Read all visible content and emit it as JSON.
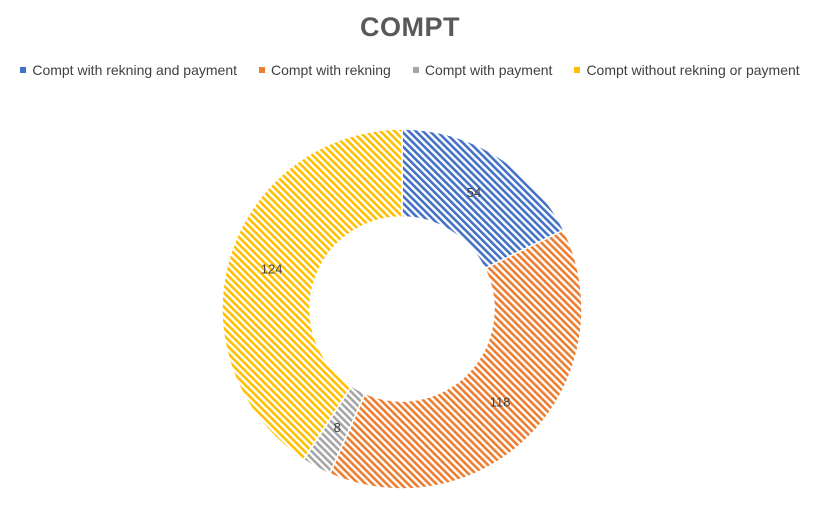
{
  "chart_data": {
    "type": "pie",
    "variant": "donut",
    "title": "COMPT",
    "legend_position": "top",
    "categories": [
      "Compt with rekning and payment",
      "Compt with rekning",
      "Compt with payment",
      "Compt without rekning or payment"
    ],
    "values": [
      54,
      118,
      8,
      124
    ],
    "colors": [
      "#4472C4",
      "#ED7D31",
      "#A5A5A5",
      "#FFC000"
    ],
    "pattern": "diagonal-hatch"
  }
}
